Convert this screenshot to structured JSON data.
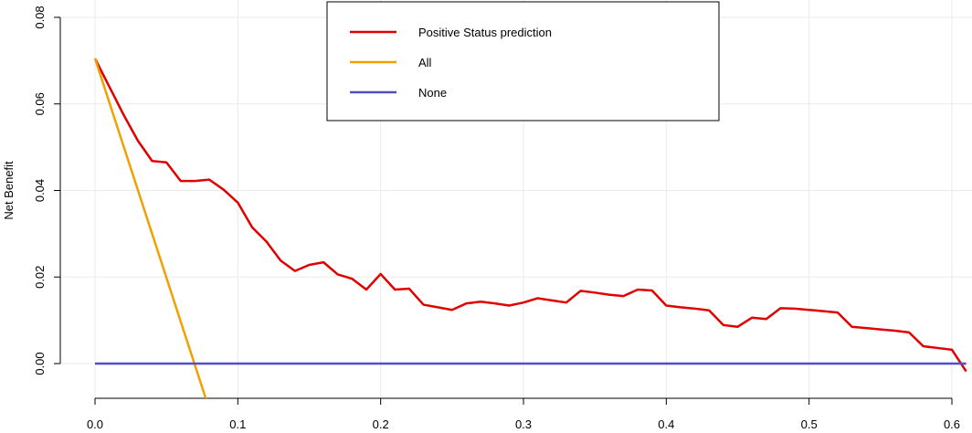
{
  "chart_data": {
    "type": "line",
    "title": "",
    "xlabel": "",
    "ylabel": "Net Benefit",
    "xlim": [
      0.0,
      0.61
    ],
    "ylim": [
      -0.008,
      0.08
    ],
    "x_ticks": [
      0.0,
      0.1,
      0.2,
      0.3,
      0.4,
      0.5,
      0.6
    ],
    "x_tick_labels": [
      "0.0",
      "0.1",
      "0.2",
      "0.3",
      "0.4",
      "0.5",
      "0.6"
    ],
    "y_ticks": [
      0.0,
      0.02,
      0.04,
      0.06,
      0.08
    ],
    "y_tick_labels": [
      "0.00",
      "0.02",
      "0.04",
      "0.06",
      "0.08"
    ],
    "grid": true,
    "legend_position": "top-center",
    "series": [
      {
        "name": "Positive Status prediction",
        "color": "#e00000",
        "points": [
          [
            0.0,
            0.0705
          ],
          [
            0.01,
            0.064
          ],
          [
            0.02,
            0.0575
          ],
          [
            0.03,
            0.0515
          ],
          [
            0.04,
            0.0468
          ],
          [
            0.05,
            0.0465
          ],
          [
            0.06,
            0.0422
          ],
          [
            0.07,
            0.0422
          ],
          [
            0.08,
            0.0425
          ],
          [
            0.09,
            0.0402
          ],
          [
            0.1,
            0.0372
          ],
          [
            0.11,
            0.0315
          ],
          [
            0.12,
            0.0282
          ],
          [
            0.13,
            0.0238
          ],
          [
            0.14,
            0.0214
          ],
          [
            0.15,
            0.0228
          ],
          [
            0.16,
            0.0234
          ],
          [
            0.17,
            0.0206
          ],
          [
            0.18,
            0.0196
          ],
          [
            0.19,
            0.0171
          ],
          [
            0.2,
            0.0207
          ],
          [
            0.21,
            0.0171
          ],
          [
            0.22,
            0.0173
          ],
          [
            0.23,
            0.0136
          ],
          [
            0.24,
            0.013
          ],
          [
            0.25,
            0.0124
          ],
          [
            0.26,
            0.0139
          ],
          [
            0.27,
            0.0143
          ],
          [
            0.28,
            0.0139
          ],
          [
            0.29,
            0.0134
          ],
          [
            0.3,
            0.0141
          ],
          [
            0.31,
            0.0151
          ],
          [
            0.32,
            0.0146
          ],
          [
            0.33,
            0.0141
          ],
          [
            0.34,
            0.0168
          ],
          [
            0.35,
            0.0164
          ],
          [
            0.36,
            0.0159
          ],
          [
            0.37,
            0.0156
          ],
          [
            0.38,
            0.0171
          ],
          [
            0.39,
            0.0169
          ],
          [
            0.4,
            0.0134
          ],
          [
            0.41,
            0.013
          ],
          [
            0.42,
            0.0127
          ],
          [
            0.43,
            0.0123
          ],
          [
            0.44,
            0.0089
          ],
          [
            0.45,
            0.0085
          ],
          [
            0.46,
            0.0106
          ],
          [
            0.47,
            0.0103
          ],
          [
            0.48,
            0.0128
          ],
          [
            0.49,
            0.0127
          ],
          [
            0.5,
            0.0124
          ],
          [
            0.51,
            0.0121
          ],
          [
            0.52,
            0.0118
          ],
          [
            0.53,
            0.0085
          ],
          [
            0.54,
            0.0082
          ],
          [
            0.55,
            0.0079
          ],
          [
            0.56,
            0.0076
          ],
          [
            0.57,
            0.0072
          ],
          [
            0.58,
            0.004
          ],
          [
            0.59,
            0.0036
          ],
          [
            0.6,
            0.0032
          ],
          [
            0.61,
            -0.0018
          ]
        ]
      },
      {
        "name": "All",
        "color": "#f0a000",
        "points": [
          [
            0.0,
            0.0705
          ],
          [
            0.078,
            -0.0085
          ]
        ]
      },
      {
        "name": "None",
        "color": "#5050c8",
        "points": [
          [
            0.0,
            0.0
          ],
          [
            0.61,
            0.0
          ]
        ]
      }
    ]
  }
}
